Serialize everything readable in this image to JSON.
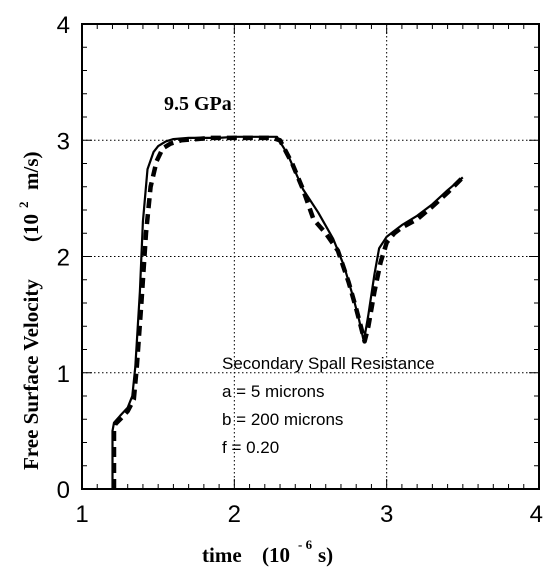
{
  "chart_data": {
    "type": "line",
    "x_ticks": [
      "1",
      "2",
      "3",
      "4"
    ],
    "y_ticks": [
      "0",
      "1",
      "2",
      "3",
      "4"
    ],
    "xlim": [
      1,
      4
    ],
    "ylim": [
      0,
      4
    ],
    "grid": true,
    "xlabel": {
      "main": "time",
      "open": "(10",
      "sup": "- 6",
      "close": "s)"
    },
    "ylabel": {
      "main": "Free Surface Velocity",
      "open": "(10",
      "sup": "2",
      "close": "m/s)"
    },
    "annotation": "9.5  GPa",
    "legend": {
      "title": "Secondary Spall Resistance",
      "lines": [
        "a = 5 microns",
        "b = 200 microns",
        "f = 0.20"
      ]
    },
    "series": [
      {
        "style": "solid",
        "x": [
          1.2,
          1.2,
          1.21,
          1.25,
          1.3,
          1.33,
          1.35,
          1.38,
          1.4,
          1.43,
          1.47,
          1.5,
          1.55,
          1.6,
          1.7,
          1.8,
          1.9,
          2.0,
          2.1,
          2.2,
          2.28,
          2.35,
          2.45,
          2.55,
          2.65,
          2.72,
          2.78,
          2.82,
          2.85,
          2.88,
          2.92,
          2.95,
          3.0,
          3.05,
          3.1,
          3.2,
          3.3,
          3.4,
          3.5
        ],
        "y": [
          0.0,
          0.5,
          0.57,
          0.63,
          0.7,
          0.8,
          1.05,
          1.7,
          2.3,
          2.75,
          2.9,
          2.95,
          2.99,
          3.01,
          3.02,
          3.02,
          3.02,
          3.03,
          3.03,
          3.03,
          3.03,
          2.88,
          2.58,
          2.38,
          2.15,
          1.92,
          1.65,
          1.45,
          1.27,
          1.5,
          1.85,
          2.07,
          2.17,
          2.22,
          2.27,
          2.35,
          2.45,
          2.57,
          2.68
        ]
      },
      {
        "style": "dashed",
        "x": [
          1.21,
          1.21,
          1.22,
          1.25,
          1.3,
          1.34,
          1.36,
          1.39,
          1.42,
          1.45,
          1.49,
          1.53,
          1.58,
          1.65,
          1.75,
          1.85,
          1.95,
          2.05,
          2.15,
          2.25,
          2.3,
          2.38,
          2.45,
          2.52,
          2.6,
          2.68,
          2.75,
          2.8,
          2.83,
          2.855,
          2.88,
          2.92,
          2.96,
          3.0,
          3.05,
          3.1,
          3.2,
          3.3,
          3.4,
          3.5
        ],
        "y": [
          0.0,
          0.5,
          0.56,
          0.6,
          0.67,
          0.77,
          1.05,
          1.6,
          2.2,
          2.6,
          2.82,
          2.93,
          2.97,
          3.0,
          3.01,
          3.02,
          3.02,
          3.02,
          3.02,
          3.02,
          3.0,
          2.8,
          2.58,
          2.32,
          2.2,
          2.05,
          1.78,
          1.55,
          1.4,
          1.27,
          1.4,
          1.7,
          1.95,
          2.12,
          2.2,
          2.25,
          2.32,
          2.43,
          2.55,
          2.68
        ]
      }
    ]
  }
}
